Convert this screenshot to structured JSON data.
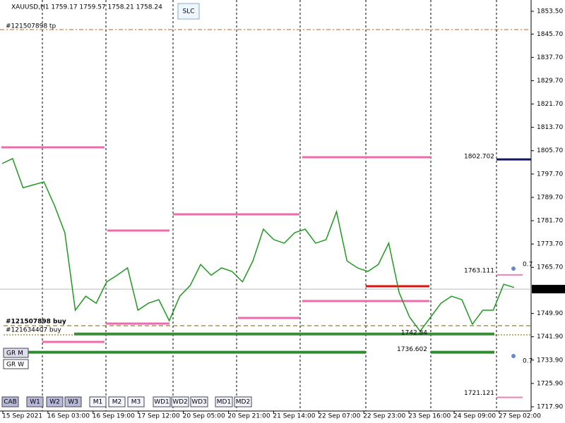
{
  "header": {
    "symbol": "XAUUSD,H1  1759.17 1759.57 1758.21 1758.24",
    "button": "SLC"
  },
  "order_labels": [
    "#121507898 tp",
    "#121507898 buy",
    "#121634407 buy"
  ],
  "price_axis": {
    "ylim": [
      1716.44,
      1857.37
    ],
    "ticks": [
      {
        "value": 1853.5,
        "label": "1853.50"
      },
      {
        "value": 1845.7,
        "label": "1845.70"
      },
      {
        "value": 1837.7,
        "label": "1837.70"
      },
      {
        "value": 1829.7,
        "label": "1829.70"
      },
      {
        "value": 1821.7,
        "label": "1821.70"
      },
      {
        "value": 1813.7,
        "label": "1813.70"
      },
      {
        "value": 1805.7,
        "label": "1805.70"
      },
      {
        "value": 1797.7,
        "label": "1797.70"
      },
      {
        "value": 1789.7,
        "label": "1789.70"
      },
      {
        "value": 1781.7,
        "label": "1781.70"
      },
      {
        "value": 1773.7,
        "label": "1773.70"
      },
      {
        "value": 1765.7,
        "label": "1765.70"
      },
      {
        "value": 1749.9,
        "label": "1749.90"
      },
      {
        "value": 1741.9,
        "label": "1741.90"
      },
      {
        "value": 1733.9,
        "label": "1733.90"
      },
      {
        "value": 1725.9,
        "label": "1725.90"
      },
      {
        "value": 1717.9,
        "label": "1717.90"
      }
    ],
    "current_price": 1758.24
  },
  "time_axis": [
    "15 Sep 2021",
    "16 Sep 03:00",
    "16 Sep 19:00",
    "17 Sep 12:00",
    "20 Sep 05:00",
    "20 Sep 21:00",
    "21 Sep 14:00",
    "22 Sep 07:00",
    "22 Sep 23:00",
    "23 Sep 16:00",
    "24 Sep 09:00",
    "27 Sep 02:00"
  ],
  "price_series": {
    "color": "#1f9a1f",
    "values": [
      1801.3,
      1803,
      1793,
      1794,
      1795,
      1787,
      1777.6,
      1751,
      1755.8,
      1753.4,
      1760.7,
      1763,
      1765.5,
      1751,
      1753.4,
      1754.6,
      1747.4,
      1755.8,
      1759.5,
      1766.7,
      1763,
      1765.5,
      1764.3,
      1760.7,
      1767.9,
      1778.8,
      1775.2,
      1774,
      1777.6,
      1778.8,
      1774,
      1775.2,
      1784.8,
      1767.9,
      1765.5,
      1764.3,
      1766.7,
      1774,
      1757,
      1748.6,
      1743.8,
      1748.6,
      1753.4,
      1755.8,
      1754.6,
      1746.2,
      1751,
      1751,
      1759.9,
      1758.8
    ]
  },
  "levels": [
    {
      "value": 1802.702,
      "color": "#14146e"
    },
    {
      "value": 1763.111,
      "color": "#f080b8"
    },
    {
      "value": 1742.84,
      "color": "#3c8c3c"
    },
    {
      "value": 1736.602,
      "color": "#2e8b2e"
    },
    {
      "value": 1721.121,
      "color": "#f080b8"
    }
  ],
  "fib_labels": [
    "0.7",
    "0.7"
  ],
  "buttons": [
    "CAB",
    "W1",
    "W2",
    "W3",
    "M1",
    "M2",
    "M3",
    "WD1",
    "WD2",
    "WD3",
    "MD1",
    "MD2"
  ],
  "side_buttons": [
    "GR M",
    "GR W"
  ]
}
